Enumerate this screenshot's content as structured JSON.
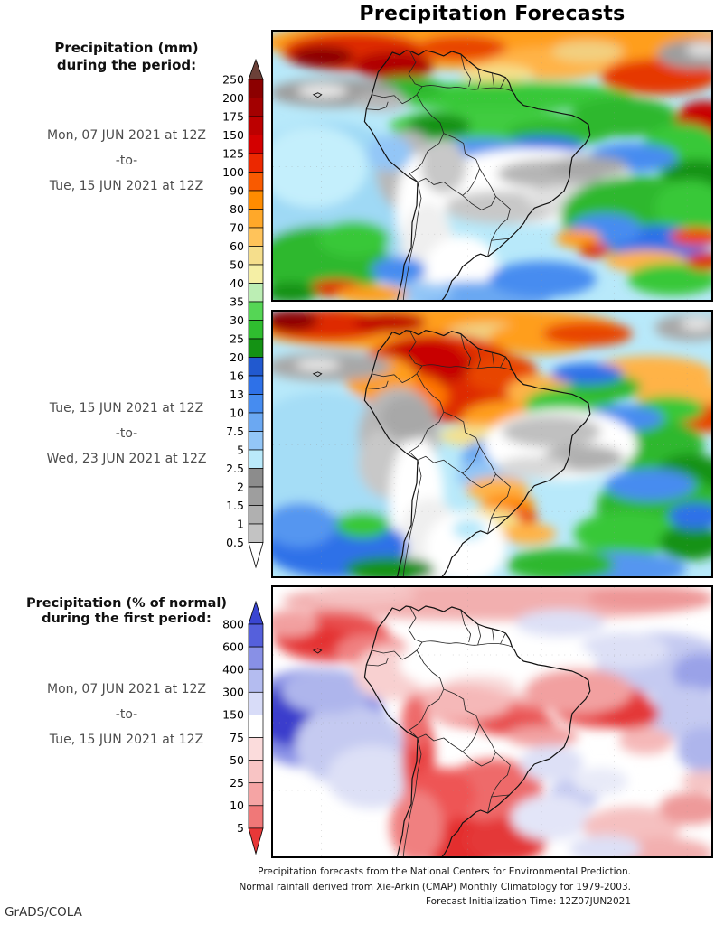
{
  "page_title": "Precipitation Forecasts",
  "credit": "GrADS/COLA",
  "left_column": {
    "mm_heading_line1": "Precipitation (mm)",
    "mm_heading_line2": "during the period:",
    "period1": {
      "from": "Mon, 07 JUN 2021 at 12Z",
      "sep": "-to-",
      "to": "Tue, 15 JUN 2021 at 12Z"
    },
    "period2": {
      "from": "Tue, 15 JUN 2021 at 12Z",
      "sep": "-to-",
      "to": "Wed, 23 JUN 2021 at 12Z"
    },
    "pct_heading_line1": "Precipitation (% of normal)",
    "pct_heading_line2": "during the first period:",
    "period3": {
      "from": "Mon, 07 JUN 2021 at 12Z",
      "sep": "-to-",
      "to": "Tue, 15 JUN 2021 at 12Z"
    }
  },
  "footer": {
    "line1": "Precipitation forecasts from the National Centers for Environmental Prediction.",
    "line2": "Normal rainfall derived from Xie-Arkin (CMAP) Monthly Climatology for 1979-2003.",
    "line3": "Forecast Initialization Time: 12Z07JUN2021"
  },
  "colorbars": {
    "mm": {
      "unit": "mm",
      "levels": [
        "250",
        "200",
        "175",
        "150",
        "125",
        "100",
        "90",
        "80",
        "70",
        "60",
        "50",
        "40",
        "35",
        "30",
        "25",
        "20",
        "16",
        "13",
        "10",
        "7.5",
        "5",
        "2.5",
        "2",
        "1.5",
        "1",
        "0.5"
      ],
      "band_colors": [
        "#8C0000",
        "#A30000",
        "#BC0000",
        "#D40000",
        "#EC2800",
        "#F95A00",
        "#FF8C00",
        "#FFA829",
        "#FFC35A",
        "#F5DE8C",
        "#F5EFA5",
        "#BCEEB4",
        "#55D655",
        "#2FBE2F",
        "#149214",
        "#2159CF",
        "#2E71E8",
        "#468CF0",
        "#6BA8F2",
        "#93C6F7",
        "#BAEAFB",
        "#8C8C8C",
        "#9E9E9E",
        "#B0B0B0",
        "#C3C3C3"
      ],
      "above_color": "#6B4038",
      "below_color": "#FFFFFF"
    },
    "pct": {
      "unit": "% of normal",
      "levels": [
        "800",
        "600",
        "400",
        "300",
        "150",
        "75",
        "50",
        "25",
        "10",
        "5"
      ],
      "band_colors": [
        "#5560DC",
        "#8890E6",
        "#B4BCF0",
        "#D8DCF8",
        "#FFFFFF",
        "#FBDCDC",
        "#F8C4C4",
        "#F5A4A4",
        "#F07878"
      ],
      "above_color": "#3A46D2",
      "below_color": "#E83838"
    }
  },
  "chart_data": [
    {
      "type": "heatmap",
      "panel": "top",
      "title": "Precipitation (mm), Mon 07 JUN 2021 12Z to Tue 15 JUN 2021 12Z",
      "units": "mm",
      "region": "South America and adjacent oceans (approx. 100W-10W, 15N-45S)",
      "scale_levels": [
        0.5,
        1,
        1.5,
        2,
        2.5,
        5,
        7.5,
        10,
        13,
        16,
        20,
        25,
        30,
        35,
        40,
        50,
        60,
        70,
        80,
        90,
        100,
        125,
        150,
        175,
        200,
        250
      ],
      "legend_position": "left",
      "notable_features": [
        "Heavy 100-250+ mm ITCZ rain band across the far north (Colombia, Venezuela, Guianas, tropical Atlantic)",
        "Dry core under 2.5 mm (white/gray) over eastern Bolivia, Paraguay, east-central Brazil and the Peru/Chile coast",
        "20-50 mm greens across the central Amazon and southeast Brazil",
        "60-150 mm orange/red cells off the southeast Brazilian coast and in the far southwest",
        "2.5-16 mm light blues over most open-ocean areas, gray cloud band in the east Pacific"
      ]
    },
    {
      "type": "heatmap",
      "panel": "middle",
      "title": "Precipitation (mm), Tue 15 JUN 2021 12Z to Wed 23 JUN 2021 12Z",
      "units": "mm",
      "region": "South America and adjacent oceans (approx. 100W-10W, 15N-45S)",
      "scale_levels": [
        0.5,
        1,
        1.5,
        2,
        2.5,
        5,
        7.5,
        10,
        13,
        16,
        20,
        25,
        30,
        35,
        40,
        50,
        60,
        70,
        80,
        90,
        100,
        125,
        150,
        175,
        200,
        250
      ],
      "legend_position": "left",
      "notable_features": [
        "Intense 100-250+ mm maximum over Colombia, Venezuela and the northwest Amazon",
        "60-100 mm orange band stretching east across the tropical Atlantic",
        "Large dry area under 2.5 mm (white/gray) over east-central Brazil and the Peru/Chile coast",
        "60-100 mm orange streak over Paraguay / northern Argentina",
        "20-50 mm greens over southern Brazil and the adjacent Atlantic"
      ]
    },
    {
      "type": "heatmap",
      "panel": "bottom",
      "title": "Precipitation (% of normal), Mon 07 JUN 2021 12Z to Tue 15 JUN 2021 12Z",
      "units": "% of normal",
      "region": "South America and adjacent oceans (approx. 100W-10W, 15N-45S)",
      "scale_levels": [
        5,
        10,
        25,
        50,
        75,
        150,
        300,
        400,
        600,
        800
      ],
      "legend_position": "left",
      "notable_features": [
        "Strongly below normal (under 25%, deep red) over central Argentina, Paraguay and the south-central Andes",
        "Below-normal red patches over Nordeste Brazil and east of Panama",
        "Strongly above normal (over 400%, deep blue) pool in the southeast Pacific",
        "Above normal (150-400%, lavender) bands over the subtropical Atlantic",
        "Near normal (75-150%, white) across most of the Amazon basin"
      ]
    }
  ]
}
